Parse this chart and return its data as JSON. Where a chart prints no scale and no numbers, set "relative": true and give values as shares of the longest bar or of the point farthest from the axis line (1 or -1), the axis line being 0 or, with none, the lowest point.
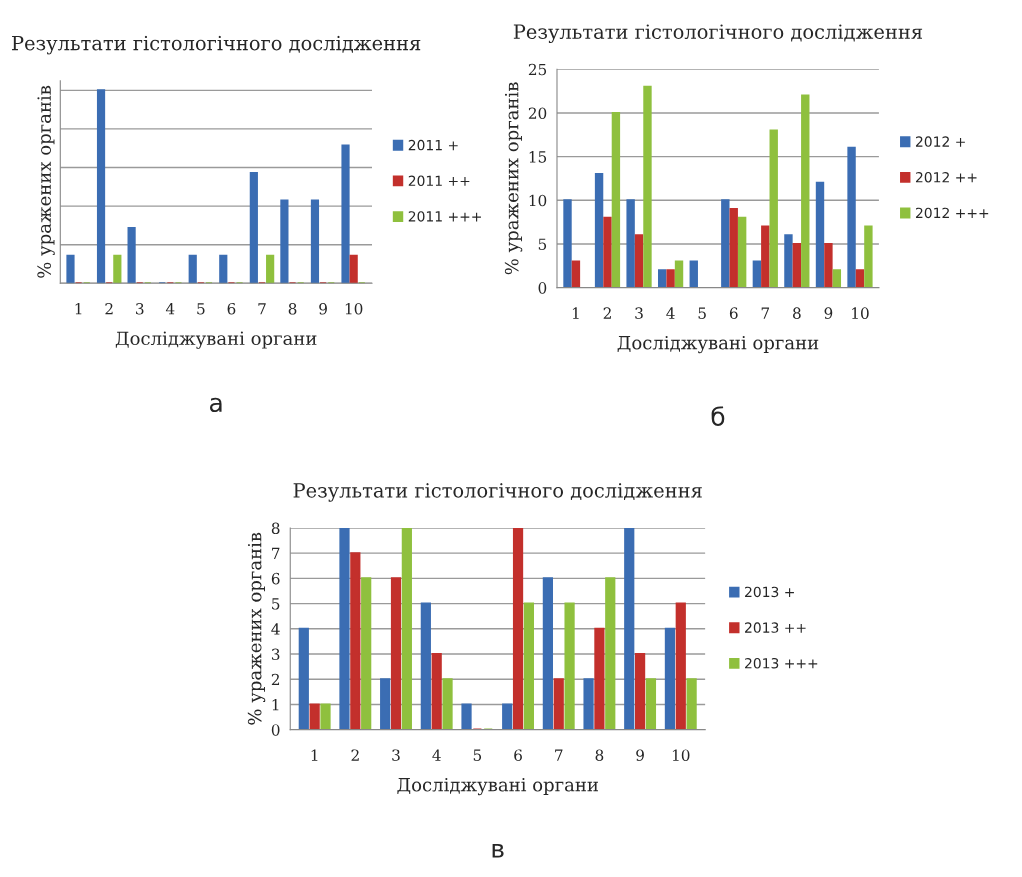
{
  "chart_data": [
    {
      "type": "bar",
      "title": "Результати гістологічного дослідження",
      "xlabel": "Досліджувані органи",
      "ylabel": "% уражених органів",
      "categories": [
        "1",
        "2",
        "3",
        "4",
        "5",
        "6",
        "7",
        "8",
        "9",
        "10"
      ],
      "relative": true,
      "grid": "y",
      "legend": "right",
      "annotations": [
        "а"
      ],
      "series": [
        {
          "name": "2011 +",
          "color": "#3b6db3",
          "values": [
            0.143,
            1,
            0.286,
            0,
            0.143,
            0.143,
            0.571,
            0.429,
            0.429,
            0.714
          ]
        },
        {
          "name": "2011 ++",
          "color": "#c3302c",
          "values": [
            0,
            0,
            0,
            0,
            0,
            0,
            0,
            0,
            0,
            0.143
          ]
        },
        {
          "name": "2011 +++",
          "color": "#8fc03e",
          "values": [
            0,
            0.143,
            0,
            0,
            0,
            0,
            0.143,
            0,
            0,
            0
          ]
        }
      ]
    },
    {
      "type": "bar",
      "title": "Результати гістологічного дослідження",
      "xlabel": "Досліджувані органи",
      "ylabel": "% уражених органів",
      "categories": [
        "1",
        "2",
        "3",
        "4",
        "5",
        "6",
        "7",
        "8",
        "9",
        "10"
      ],
      "ylim": [
        0,
        25
      ],
      "yticks": [
        0,
        5,
        10,
        15,
        20,
        25
      ],
      "grid": "y",
      "legend": "right",
      "annotations": [
        "б"
      ],
      "series": [
        {
          "name": "2012 +",
          "color": "#3b6db3",
          "values": [
            10,
            13,
            10,
            2,
            3,
            10,
            3,
            6,
            12,
            16
          ]
        },
        {
          "name": "2012 ++",
          "color": "#c3302c",
          "values": [
            3,
            8,
            6,
            2,
            null,
            9,
            7,
            5,
            5,
            2
          ]
        },
        {
          "name": "2012 +++",
          "color": "#8fc03e",
          "values": [
            null,
            20,
            23,
            3,
            null,
            8,
            18,
            22,
            2,
            7
          ]
        }
      ]
    },
    {
      "type": "bar",
      "title": "Результати гістологічного дослідження",
      "xlabel": "Досліджувані органи",
      "ylabel": "% уражених органів",
      "categories": [
        "1",
        "2",
        "3",
        "4",
        "5",
        "6",
        "7",
        "8",
        "9",
        "10"
      ],
      "ylim": [
        0,
        8
      ],
      "yticks": [
        0,
        1,
        2,
        3,
        4,
        5,
        6,
        7,
        8
      ],
      "grid": "y",
      "legend": "right",
      "annotations": [
        "в"
      ],
      "series": [
        {
          "name": "2013 +",
          "color": "#3b6db3",
          "values": [
            4,
            8,
            2,
            5,
            1,
            1,
            6,
            2,
            8,
            4
          ]
        },
        {
          "name": "2013 ++",
          "color": "#c3302c",
          "values": [
            1,
            7,
            6,
            3,
            0,
            8,
            2,
            4,
            3,
            5
          ]
        },
        {
          "name": "2013 +++",
          "color": "#8fc03e",
          "values": [
            1,
            6,
            8,
            2,
            0,
            5,
            5,
            6,
            2,
            2
          ]
        }
      ]
    }
  ]
}
